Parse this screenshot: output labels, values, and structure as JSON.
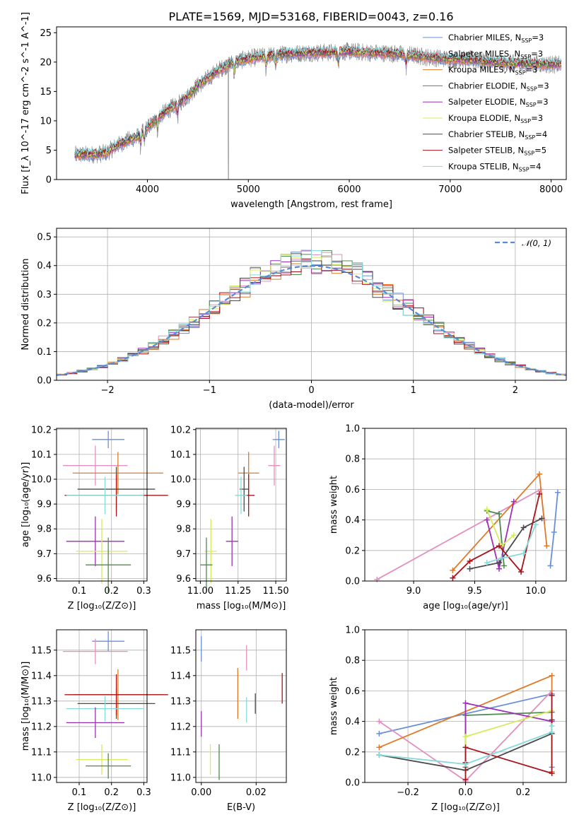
{
  "figure": {
    "title": "PLATE=1569, MJD=53168, FIBERID=0043, z=0.16"
  },
  "colors": {
    "Chabrier MILES": "#6a8fd8",
    "Salpeter MILES": "#e38fbf",
    "Kroupa MILES": "#e07a26",
    "Chabrier ELODIE": "#4f8a4f",
    "Salpeter ELODIE": "#9b30b5",
    "Kroupa ELODIE": "#d4ec5e",
    "Chabrier STELIB": "#4a4a4a",
    "Salpeter STELIB": "#a8141c",
    "Kroupa STELIB": "#86dada",
    "spectrum": "#808080",
    "normal": "#5b8ad8"
  },
  "chart_data": [
    {
      "id": "spectrum",
      "type": "line",
      "title": "PLATE=1569, MJD=53168, FIBERID=0043, z=0.16",
      "xlabel": "wavelength [Angstrom, rest frame]",
      "ylabel": "Flux [f_λ 10^-17 erg cm^-2 s^-1 A^-1]",
      "xlim": [
        3100,
        8150
      ],
      "ylim": [
        0,
        26
      ],
      "xticks": [
        4000,
        5000,
        6000,
        7000,
        8000
      ],
      "yticks": [
        0,
        5,
        10,
        15,
        20,
        25
      ],
      "grid": false,
      "legend_position": "upper-right",
      "legend": [
        {
          "label": "Chabrier MILES, N_SSP=3",
          "base": "Chabrier MILES, N",
          "sub": "SSP",
          "tail": "=3"
        },
        {
          "label": "Salpeter MILES, N_SSP=3",
          "base": "Salpeter MILES, N",
          "sub": "SSP",
          "tail": "=3"
        },
        {
          "label": "Kroupa MILES, N_SSP=3",
          "base": "Kroupa MILES, N",
          "sub": "SSP",
          "tail": "=3"
        },
        {
          "label": "Chabrier ELODIE, N_SSP=3",
          "base": "Chabrier ELODIE, N",
          "sub": "SSP",
          "tail": "=3"
        },
        {
          "label": "Salpeter ELODIE, N_SSP=3",
          "base": "Salpeter ELODIE, N",
          "sub": "SSP",
          "tail": "=3"
        },
        {
          "label": "Kroupa ELODIE, N_SSP=3",
          "base": "Kroupa ELODIE, N",
          "sub": "SSP",
          "tail": "=3"
        },
        {
          "label": "Chabrier STELIB, N_SSP=4",
          "base": "Chabrier STELIB, N",
          "sub": "SSP",
          "tail": "=4"
        },
        {
          "label": "Salpeter STELIB, N_SSP=5",
          "base": "Salpeter STELIB, N",
          "sub": "SSP",
          "tail": "=5"
        },
        {
          "label": "Kroupa STELIB, N_SSP=4",
          "base": "Kroupa STELIB, N",
          "sub": "SSP",
          "tail": "=4"
        }
      ],
      "continuum": {
        "x": [
          3280,
          3500,
          3600,
          3700,
          3800,
          3900,
          4000,
          4100,
          4200,
          4300,
          4400,
          4500,
          4600,
          4700,
          4800,
          4900,
          5000,
          5200,
          5400,
          5600,
          5800,
          6000,
          6200,
          6400,
          6600,
          6800,
          7000,
          7200,
          7400,
          7600,
          7800,
          8000,
          8100
        ],
        "y": [
          4.2,
          4.3,
          4.6,
          5.8,
          6.6,
          7.3,
          8.8,
          10.5,
          11.8,
          12.8,
          14.2,
          16.0,
          17.2,
          18.6,
          19.6,
          20.2,
          20.6,
          21.1,
          21.4,
          21.6,
          21.6,
          21.8,
          21.6,
          21.5,
          21.2,
          20.8,
          20.5,
          20.4,
          20.0,
          19.8,
          19.7,
          19.6,
          19.5
        ]
      }
    },
    {
      "id": "residuals",
      "type": "histogram",
      "xlabel": "(data-model)/error",
      "ylabel": "Normed distribution",
      "xlim": [
        -2.5,
        2.5
      ],
      "ylim": [
        0,
        0.53
      ],
      "xticks": [
        -2,
        -1,
        0,
        1,
        2
      ],
      "xtick_labels": [
        "−2",
        "−1",
        "0",
        "1",
        "2"
      ],
      "yticks": [
        0.0,
        0.1,
        0.2,
        0.3,
        0.4,
        0.5
      ],
      "ytick_labels": [
        "0.0",
        "0.1",
        "0.2",
        "0.3",
        "0.4",
        "0.5"
      ],
      "grid": true,
      "bin_width": 0.1,
      "legend": [
        {
          "label": "𝒩(0, 1)"
        }
      ],
      "legend_position": "upper-right",
      "normal": {
        "mean": 0,
        "sd": 1,
        "style": "dashed"
      }
    },
    {
      "id": "age-vs-Z",
      "type": "errorbar",
      "xlabel": "Z [log₁₀(Z/Z⊙)]",
      "ylabel": "age  [log₁₀(age/yr)]",
      "xlim": [
        0.03,
        0.31
      ],
      "ylim": [
        9.59,
        10.205
      ],
      "xticks": [
        0.1,
        0.2,
        0.3
      ],
      "yticks": [
        9.6,
        9.7,
        9.8,
        9.9,
        10.0,
        10.1,
        10.2
      ],
      "xtick_labels": [
        "0.1",
        "0.2",
        "0.3"
      ],
      "ytick_labels": [
        "9.6",
        "9.7",
        "9.8",
        "9.9",
        "10.0",
        "10.1",
        "10.2"
      ],
      "grid": true,
      "points": [
        {
          "model": "Chabrier MILES",
          "x": 0.19,
          "xerr": 0.05,
          "y": 10.16,
          "yerr": 0.035
        },
        {
          "model": "Salpeter MILES",
          "x": 0.15,
          "xerr": 0.1,
          "y": 10.055,
          "yerr": 0.08
        },
        {
          "model": "Kroupa MILES",
          "x": 0.22,
          "xerr": 0.14,
          "y": 10.025,
          "yerr": 0.085
        },
        {
          "model": "Chabrier STELIB",
          "x": 0.215,
          "xerr": 0.12,
          "y": 9.96,
          "yerr": 0.09
        },
        {
          "model": "Salpeter STELIB",
          "x": 0.215,
          "xerr": 0.16,
          "y": 9.935,
          "yerr": 0.085
        },
        {
          "model": "Kroupa STELIB",
          "x": 0.18,
          "xerr": 0.12,
          "y": 9.935,
          "yerr": 0.075
        },
        {
          "model": "Salpeter ELODIE",
          "x": 0.15,
          "xerr": 0.09,
          "y": 9.75,
          "yerr": 0.1
        },
        {
          "model": "Kroupa ELODIE",
          "x": 0.17,
          "xerr": 0.08,
          "y": 9.71,
          "yerr": 0.13
        },
        {
          "model": "Chabrier ELODIE",
          "x": 0.19,
          "xerr": 0.07,
          "y": 9.655,
          "yerr": 0.11
        }
      ]
    },
    {
      "id": "age-vs-mass",
      "type": "errorbar",
      "xlabel": "mass [log₁₀(M/M⊙)]",
      "ylabel": "",
      "xlim": [
        10.97,
        11.57
      ],
      "ylim": [
        9.59,
        10.205
      ],
      "xticks": [
        11.0,
        11.25,
        11.5
      ],
      "yticks": [
        9.6,
        9.7,
        9.8,
        9.9,
        10.0,
        10.1,
        10.2
      ],
      "xtick_labels": [
        "11.00",
        "11.25",
        "11.50"
      ],
      "ytick_labels": [
        "9.6",
        "9.7",
        "9.8",
        "9.9",
        "10.0",
        "10.1",
        "10.2"
      ],
      "grid": true,
      "points": [
        {
          "model": "Chabrier MILES",
          "x": 11.52,
          "xerr": 0.04,
          "y": 10.16,
          "yerr": 0.035
        },
        {
          "model": "Salpeter MILES",
          "x": 11.49,
          "xerr": 0.04,
          "y": 10.055,
          "yerr": 0.08
        },
        {
          "model": "Kroupa MILES",
          "x": 11.32,
          "xerr": 0.07,
          "y": 10.025,
          "yerr": 0.085
        },
        {
          "model": "Chabrier STELIB",
          "x": 11.29,
          "xerr": 0.03,
          "y": 9.96,
          "yerr": 0.09
        },
        {
          "model": "Salpeter STELIB",
          "x": 11.32,
          "xerr": 0.04,
          "y": 9.935,
          "yerr": 0.085
        },
        {
          "model": "Kroupa STELIB",
          "x": 11.27,
          "xerr": 0.04,
          "y": 9.935,
          "yerr": 0.075
        },
        {
          "model": "Salpeter ELODIE",
          "x": 11.21,
          "xerr": 0.04,
          "y": 9.75,
          "yerr": 0.1
        },
        {
          "model": "Kroupa ELODIE",
          "x": 11.07,
          "xerr": 0.04,
          "y": 9.71,
          "yerr": 0.13
        },
        {
          "model": "Chabrier ELODIE",
          "x": 11.04,
          "xerr": 0.04,
          "y": 9.655,
          "yerr": 0.11
        }
      ]
    },
    {
      "id": "mass-weight-vs-age",
      "type": "line",
      "xlabel": "age  [log₁₀(age/yr)]",
      "ylabel": "mass weight",
      "xlim": [
        8.6,
        10.25
      ],
      "ylim": [
        0,
        1
      ],
      "xticks": [
        9.0,
        9.5,
        10.0
      ],
      "yticks": [
        0.0,
        0.2,
        0.4,
        0.6,
        0.8,
        1.0
      ],
      "xtick_labels": [
        "9.0",
        "9.5",
        "10.0"
      ],
      "ytick_labels": [
        "0.0",
        "0.2",
        "0.4",
        "0.6",
        "0.8",
        "1.0"
      ],
      "grid": true,
      "series": [
        {
          "model": "Chabrier MILES",
          "x": [
            10.12,
            10.15,
            10.18
          ],
          "y": [
            0.1,
            0.32,
            0.58
          ]
        },
        {
          "model": "Salpeter MILES",
          "x": [
            8.7,
            10.04,
            10.07
          ],
          "y": [
            0.01,
            0.6,
            0.4
          ]
        },
        {
          "model": "Kroupa MILES",
          "x": [
            9.32,
            10.03,
            10.09
          ],
          "y": [
            0.07,
            0.7,
            0.23
          ]
        },
        {
          "model": "Chabrier ELODIE",
          "x": [
            9.6,
            9.7,
            9.74
          ],
          "y": [
            0.46,
            0.44,
            0.1
          ]
        },
        {
          "model": "Salpeter ELODIE",
          "x": [
            9.6,
            9.7,
            9.82
          ],
          "y": [
            0.4,
            0.08,
            0.52
          ]
        },
        {
          "model": "Kroupa ELODIE",
          "x": [
            9.6,
            9.72,
            9.82
          ],
          "y": [
            0.47,
            0.23,
            0.3
          ]
        },
        {
          "model": "Chabrier STELIB",
          "x": [
            9.46,
            9.7,
            9.9,
            10.05
          ],
          "y": [
            0.08,
            0.12,
            0.35,
            0.41
          ]
        },
        {
          "model": "Salpeter STELIB",
          "x": [
            9.32,
            9.46,
            9.7,
            9.88,
            10.03
          ],
          "y": [
            0.02,
            0.13,
            0.23,
            0.06,
            0.57
          ]
        },
        {
          "model": "Kroupa STELIB",
          "x": [
            9.6,
            9.72,
            9.9,
            10.0
          ],
          "y": [
            0.12,
            0.15,
            0.18,
            0.37
          ]
        }
      ]
    },
    {
      "id": "mass-vs-Z",
      "type": "errorbar",
      "xlabel": "Z [log₁₀(Z/Z⊙)]",
      "ylabel": "mass [log₁₀(M/M⊙)]",
      "xlim": [
        0.03,
        0.31
      ],
      "ylim": [
        10.98,
        11.58
      ],
      "xticks": [
        0.1,
        0.2,
        0.3
      ],
      "yticks": [
        11.0,
        11.1,
        11.2,
        11.3,
        11.4,
        11.5
      ],
      "xtick_labels": [
        "0.1",
        "0.2",
        "0.3"
      ],
      "ytick_labels": [
        "11.0",
        "11.1",
        "11.2",
        "11.3",
        "11.4",
        "11.5"
      ],
      "grid": true,
      "points": [
        {
          "model": "Chabrier MILES",
          "x": 0.19,
          "xerr": 0.05,
          "y": 11.535,
          "yerr": 0.04
        },
        {
          "model": "Salpeter MILES",
          "x": 0.15,
          "xerr": 0.1,
          "y": 11.495,
          "yerr": 0.05
        },
        {
          "model": "Kroupa MILES",
          "x": 0.22,
          "xerr": 0.14,
          "y": 11.325,
          "yerr": 0.1
        },
        {
          "model": "Chabrier STELIB",
          "x": 0.215,
          "xerr": 0.12,
          "y": 11.29,
          "yerr": 0.06
        },
        {
          "model": "Salpeter STELIB",
          "x": 0.215,
          "xerr": 0.16,
          "y": 11.325,
          "yerr": 0.08
        },
        {
          "model": "Kroupa STELIB",
          "x": 0.18,
          "xerr": 0.12,
          "y": 11.27,
          "yerr": 0.05
        },
        {
          "model": "Salpeter ELODIE",
          "x": 0.15,
          "xerr": 0.09,
          "y": 11.215,
          "yerr": 0.06
        },
        {
          "model": "Kroupa ELODIE",
          "x": 0.17,
          "xerr": 0.08,
          "y": 11.07,
          "yerr": 0.06
        },
        {
          "model": "Chabrier ELODIE",
          "x": 0.19,
          "xerr": 0.07,
          "y": 11.045,
          "yerr": 0.05
        }
      ]
    },
    {
      "id": "mass-vs-EBV",
      "type": "errorbar",
      "xlabel": "E(B-V)",
      "ylabel": "",
      "xlim": [
        -0.002,
        0.031
      ],
      "ylim": [
        10.98,
        11.58
      ],
      "xticks": [
        0.0,
        0.02
      ],
      "yticks": [
        11.0,
        11.1,
        11.2,
        11.3,
        11.4,
        11.5
      ],
      "xtick_labels": [
        "0.00",
        "0.02"
      ],
      "ytick_labels": [
        "11.0",
        "11.1",
        "11.2",
        "11.3",
        "11.4",
        "11.5"
      ],
      "grid": true,
      "points": [
        {
          "model": "Chabrier MILES",
          "x": 0.0,
          "xerr": 0,
          "y": 11.505,
          "yerr": 0.05
        },
        {
          "model": "Salpeter MILES",
          "x": 0.0165,
          "xerr": 0,
          "y": 11.47,
          "yerr": 0.05
        },
        {
          "model": "Kroupa MILES",
          "x": 0.0133,
          "xerr": 0,
          "y": 11.33,
          "yerr": 0.1
        },
        {
          "model": "Chabrier STELIB",
          "x": 0.0197,
          "xerr": 0,
          "y": 11.29,
          "yerr": 0.04
        },
        {
          "model": "Salpeter STELIB",
          "x": 0.0295,
          "xerr": 0,
          "y": 11.35,
          "yerr": 0.06
        },
        {
          "model": "Kroupa STELIB",
          "x": 0.0165,
          "xerr": 0,
          "y": 11.265,
          "yerr": 0.05
        },
        {
          "model": "Salpeter ELODIE",
          "x": 0.0,
          "xerr": 0,
          "y": 11.21,
          "yerr": 0.05
        },
        {
          "model": "Kroupa ELODIE",
          "x": 0.0033,
          "xerr": 0,
          "y": 11.07,
          "yerr": 0.06
        },
        {
          "model": "Chabrier ELODIE",
          "x": 0.0065,
          "xerr": 0,
          "y": 11.06,
          "yerr": 0.07
        }
      ]
    },
    {
      "id": "mass-weight-vs-Z",
      "type": "line",
      "xlabel": "Z [log₁₀(Z/Z⊙)]",
      "ylabel": "mass weight",
      "xlim": [
        -0.35,
        0.35
      ],
      "ylim": [
        0,
        1
      ],
      "xticks": [
        -0.2,
        0.0,
        0.2
      ],
      "yticks": [
        0.0,
        0.2,
        0.4,
        0.6,
        0.8,
        1.0
      ],
      "xtick_labels": [
        "−0.2",
        "0.0",
        "0.2"
      ],
      "ytick_labels": [
        "0.0",
        "0.2",
        "0.4",
        "0.6",
        "0.8",
        "1.0"
      ],
      "grid": true,
      "series": [
        {
          "model": "Chabrier MILES",
          "x": [
            -0.3,
            0.3,
            0.3
          ],
          "y": [
            0.32,
            0.58,
            0.1
          ]
        },
        {
          "model": "Salpeter MILES",
          "x": [
            -0.3,
            0.0,
            0.3
          ],
          "y": [
            0.4,
            0.01,
            0.6
          ]
        },
        {
          "model": "Kroupa MILES",
          "x": [
            -0.3,
            0.3,
            0.3
          ],
          "y": [
            0.23,
            0.7,
            0.07
          ]
        },
        {
          "model": "Chabrier ELODIE",
          "x": [
            0.0,
            0.0,
            0.3
          ],
          "y": [
            0.1,
            0.44,
            0.46
          ]
        },
        {
          "model": "Salpeter ELODIE",
          "x": [
            0.0,
            0.0,
            0.3
          ],
          "y": [
            0.08,
            0.52,
            0.4
          ]
        },
        {
          "model": "Kroupa ELODIE",
          "x": [
            0.0,
            0.0,
            0.3
          ],
          "y": [
            0.23,
            0.3,
            0.47
          ]
        },
        {
          "model": "Chabrier STELIB",
          "x": [
            -0.3,
            0.0,
            0.3,
            0.3
          ],
          "y": [
            0.18,
            0.08,
            0.32,
            0.41
          ]
        },
        {
          "model": "Salpeter STELIB",
          "x": [
            0.0,
            0.0,
            0.0,
            0.3,
            0.3
          ],
          "y": [
            0.02,
            0.13,
            0.23,
            0.06,
            0.57
          ]
        },
        {
          "model": "Kroupa STELIB",
          "x": [
            -0.3,
            0.0,
            0.3,
            0.3
          ],
          "y": [
            0.18,
            0.12,
            0.33,
            0.37
          ]
        }
      ]
    }
  ]
}
